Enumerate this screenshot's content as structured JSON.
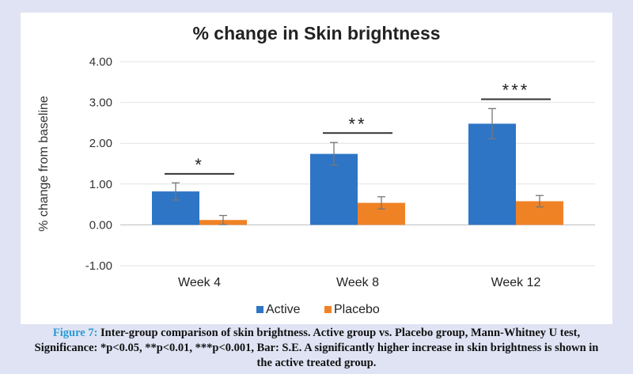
{
  "caption": {
    "label": "Figure 7:",
    "text": "Inter-group comparison of skin brightness. Active group vs. Placebo group, Mann-Whitney U test, Significance: *p<0.05, **p<0.01, ***p<0.001, Bar: S.E. A significantly higher increase in skin brightness is shown in the active treated group."
  },
  "chart_data": {
    "type": "bar",
    "title": "% change in Skin brightness",
    "ylabel": "% change from baseline",
    "xlabel": "",
    "ylim": [
      -1.0,
      4.0
    ],
    "yticks": [
      -1.0,
      0.0,
      1.0,
      2.0,
      3.0,
      4.0
    ],
    "ytick_labels": [
      "-1.00",
      "0.00",
      "1.00",
      "2.00",
      "3.00",
      "4.00"
    ],
    "grid": true,
    "legend_position": "bottom",
    "categories": [
      "Week 4",
      "Week 8",
      "Week 12"
    ],
    "series": [
      {
        "name": "Active",
        "color": "#2e75c5",
        "values": [
          0.82,
          1.74,
          2.48
        ],
        "errors": [
          0.21,
          0.28,
          0.37
        ]
      },
      {
        "name": "Placebo",
        "color": "#f08226",
        "values": [
          0.12,
          0.54,
          0.58
        ],
        "errors": [
          0.11,
          0.15,
          0.14
        ]
      }
    ],
    "annotations": [
      {
        "category": "Week 4",
        "text": "*",
        "y": 1.25
      },
      {
        "category": "Week 8",
        "text": "**",
        "y": 2.25
      },
      {
        "category": "Week 12",
        "text": "***",
        "y": 3.08
      }
    ]
  }
}
